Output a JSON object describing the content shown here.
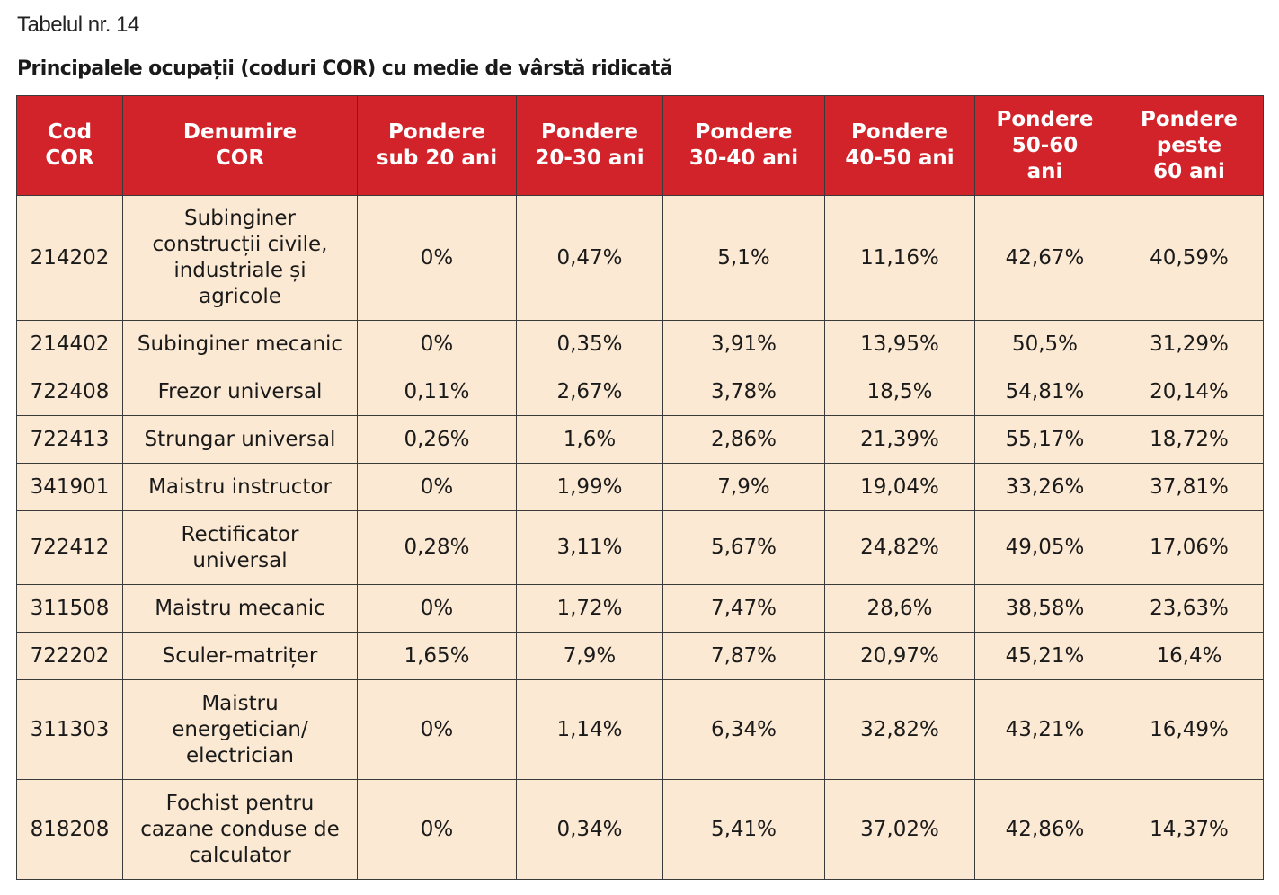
{
  "document": {
    "caption": "Tabelul nr. 14",
    "title": "Principalele ocupații (coduri COR) cu medie de vârstă ridicată"
  },
  "table": {
    "headers": [
      "Cod\nCOR",
      "Denumire\nCOR",
      "Pondere\nsub 20 ani",
      "Pondere\n20-30 ani",
      "Pondere\n30-40 ani",
      "Pondere\n40-50 ani",
      "Pondere\n50-60\nani",
      "Pondere\npeste\n60 ani"
    ],
    "rows": [
      {
        "cod": "214202",
        "denumire": "Subinginer\nconstrucții civile,\nindustriale și\nagricole",
        "sub20": "0%",
        "p20_30": "0,47%",
        "p30_40": "5,1%",
        "p40_50": "11,16%",
        "p50_60": "42,67%",
        "peste60": "40,59%"
      },
      {
        "cod": "214402",
        "denumire": "Subinginer mecanic",
        "sub20": "0%",
        "p20_30": "0,35%",
        "p30_40": "3,91%",
        "p40_50": "13,95%",
        "p50_60": "50,5%",
        "peste60": "31,29%"
      },
      {
        "cod": "722408",
        "denumire": "Frezor universal",
        "sub20": "0,11%",
        "p20_30": "2,67%",
        "p30_40": "3,78%",
        "p40_50": "18,5%",
        "p50_60": "54,81%",
        "peste60": "20,14%"
      },
      {
        "cod": "722413",
        "denumire": "Strungar universal",
        "sub20": "0,26%",
        "p20_30": "1,6%",
        "p30_40": "2,86%",
        "p40_50": "21,39%",
        "p50_60": "55,17%",
        "peste60": "18,72%"
      },
      {
        "cod": "341901",
        "denumire": "Maistru instructor",
        "sub20": "0%",
        "p20_30": "1,99%",
        "p30_40": "7,9%",
        "p40_50": "19,04%",
        "p50_60": "33,26%",
        "peste60": "37,81%"
      },
      {
        "cod": "722412",
        "denumire": "Rectificator\nuniversal",
        "sub20": "0,28%",
        "p20_30": "3,11%",
        "p30_40": "5,67%",
        "p40_50": "24,82%",
        "p50_60": "49,05%",
        "peste60": "17,06%"
      },
      {
        "cod": "311508",
        "denumire": "Maistru mecanic",
        "sub20": "0%",
        "p20_30": "1,72%",
        "p30_40": "7,47%",
        "p40_50": "28,6%",
        "p50_60": "38,58%",
        "peste60": "23,63%"
      },
      {
        "cod": "722202",
        "denumire": "Sculer-matrițer",
        "sub20": "1,65%",
        "p20_30": "7,9%",
        "p30_40": "7,87%",
        "p40_50": "20,97%",
        "p50_60": "45,21%",
        "peste60": "16,4%"
      },
      {
        "cod": "311303",
        "denumire": "Maistru\nenergetician/\nelectrician",
        "sub20": "0%",
        "p20_30": "1,14%",
        "p30_40": "6,34%",
        "p40_50": "32,82%",
        "p50_60": "43,21%",
        "peste60": "16,49%"
      },
      {
        "cod": "818208",
        "denumire": "Fochist pentru\ncazane conduse de\ncalculator",
        "sub20": "0%",
        "p20_30": "0,34%",
        "p30_40": "5,41%",
        "p40_50": "37,02%",
        "p50_60": "42,86%",
        "peste60": "14,37%"
      }
    ]
  },
  "colors": {
    "header_bg": "#d2232a",
    "header_text": "#ffffff",
    "cell_bg": "#fbe9d3",
    "border": "#3a3a3a"
  }
}
